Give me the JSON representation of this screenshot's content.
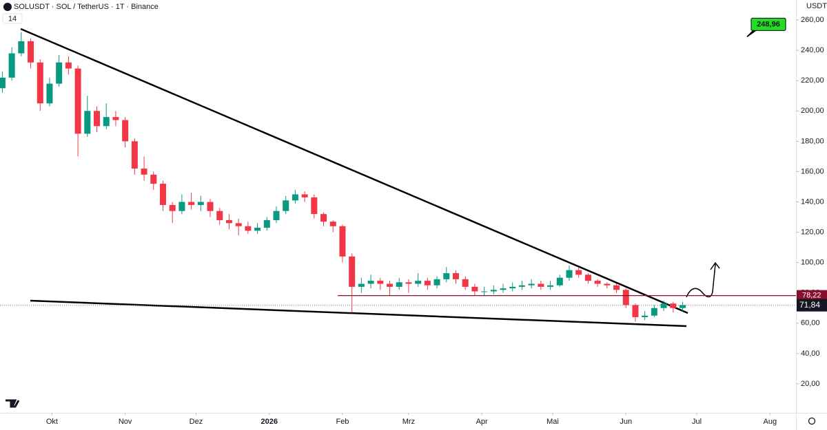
{
  "chart_data": {
    "type": "candlestick",
    "title": "SOLUSDT · SOL / TetherUS · 1T · Binance",
    "indicator_label": "14",
    "currency": "USDT",
    "up_color": "#089981",
    "down_color": "#f23645",
    "xlim": [
      0,
      337
    ],
    "xticks": [
      {
        "value": 22,
        "label": "Okt"
      },
      {
        "value": 53,
        "label": "Nov"
      },
      {
        "value": 83,
        "label": "Dez"
      },
      {
        "value": 114,
        "label": "2026"
      },
      {
        "value": 145,
        "label": "Feb"
      },
      {
        "value": 173,
        "label": "Mrz"
      },
      {
        "value": 204,
        "label": "Apr"
      },
      {
        "value": 234,
        "label": "Mai"
      },
      {
        "value": 265,
        "label": "Jun"
      },
      {
        "value": 295,
        "label": "Jul"
      },
      {
        "value": 326,
        "label": "Aug"
      }
    ],
    "ylim": [
      0.9,
      273.2
    ],
    "yticks": [
      {
        "value": 20,
        "label": "20,00"
      },
      {
        "value": 40,
        "label": "40,00"
      },
      {
        "value": 60,
        "label": "60,00"
      },
      {
        "value": 80,
        "label": "80,00"
      },
      {
        "value": 100,
        "label": "100,00"
      },
      {
        "value": 120,
        "label": "120,00"
      },
      {
        "value": 140,
        "label": "140,00"
      },
      {
        "value": 160,
        "label": "160,00"
      },
      {
        "value": 180,
        "label": "180,00"
      },
      {
        "value": 200,
        "label": "200,00"
      },
      {
        "value": 220,
        "label": "220,00"
      },
      {
        "value": 240,
        "label": "240,00"
      },
      {
        "value": 260,
        "label": "260,00"
      }
    ],
    "x": [
      1,
      5,
      9,
      13,
      17,
      21,
      25,
      29,
      33,
      37,
      41,
      45,
      49,
      53,
      57,
      61,
      65,
      69,
      73,
      77,
      81,
      85,
      89,
      93,
      97,
      101,
      105,
      109,
      113,
      117,
      121,
      125,
      129,
      133,
      137,
      141,
      145,
      149,
      153,
      157,
      161,
      165,
      169,
      173,
      177,
      181,
      185,
      189,
      193,
      197,
      201,
      205,
      209,
      213,
      217,
      221,
      225,
      229,
      233,
      237,
      241,
      245,
      249,
      253,
      257,
      261,
      265,
      269,
      273,
      277,
      281,
      285,
      289
    ],
    "open": [
      215,
      222,
      238,
      246,
      232,
      205,
      218,
      232,
      228,
      185,
      200,
      190,
      196,
      194,
      180,
      162,
      158,
      152,
      138,
      134,
      140,
      138,
      140,
      134,
      128,
      126,
      124,
      121,
      123,
      128,
      134,
      141,
      145,
      143,
      132,
      127,
      124,
      104,
      84,
      86,
      88,
      86,
      84,
      87,
      86,
      88,
      85,
      89,
      93,
      89,
      84,
      81,
      81,
      82,
      83,
      84,
      85,
      86,
      84,
      85,
      90,
      95,
      92,
      88,
      86,
      85,
      82,
      72,
      64,
      65,
      70,
      73,
      70
    ],
    "high": [
      226,
      242,
      252,
      248,
      234,
      222,
      237,
      236,
      230,
      210,
      203,
      205,
      200,
      196,
      182,
      170,
      160,
      154,
      140,
      145,
      146,
      144,
      142,
      136,
      132,
      129,
      127,
      126,
      130,
      137,
      144,
      148,
      147,
      145,
      133,
      128,
      125,
      106,
      90,
      92,
      90,
      88,
      90,
      89,
      93,
      90,
      91,
      97,
      95,
      91,
      86,
      84,
      85,
      86,
      87,
      88,
      89,
      88,
      88,
      92,
      98,
      97,
      93,
      89,
      87,
      86,
      83,
      73,
      68,
      72,
      75,
      74,
      74
    ],
    "low": [
      212,
      220,
      236,
      228,
      200,
      203,
      216,
      224,
      170,
      183,
      186,
      188,
      190,
      176,
      158,
      154,
      148,
      134,
      126,
      132,
      135,
      134,
      130,
      125,
      122,
      118,
      119,
      119,
      121,
      126,
      132,
      139,
      140,
      129,
      124,
      120,
      100,
      67,
      80,
      83,
      82,
      78,
      82,
      80,
      84,
      82,
      83,
      87,
      86,
      82,
      78,
      78,
      79,
      80,
      81,
      82,
      83,
      82,
      82,
      84,
      88,
      90,
      86,
      84,
      83,
      80,
      70,
      61,
      62,
      64,
      68,
      67,
      68
    ],
    "close": [
      222,
      238,
      246,
      232,
      205,
      218,
      232,
      228,
      185,
      200,
      190,
      196,
      194,
      180,
      162,
      158,
      152,
      138,
      134,
      140,
      138,
      140,
      134,
      128,
      126,
      124,
      121,
      123,
      128,
      134,
      141,
      145,
      143,
      132,
      127,
      124,
      104,
      84,
      86,
      88,
      86,
      84,
      87,
      86,
      88,
      85,
      89,
      93,
      89,
      84,
      81,
      81,
      82,
      83,
      84,
      85,
      86,
      84,
      85,
      90,
      95,
      92,
      88,
      86,
      85,
      82,
      72,
      64,
      65,
      70,
      73,
      70,
      72
    ],
    "level": {
      "value": 78.22,
      "label": "78,22",
      "color": "#880e2f"
    },
    "last_price": {
      "value": 71.84,
      "label": "71,84",
      "color": "#131722"
    },
    "price_note": {
      "value": 248.96,
      "label": "248,96",
      "color": "#22dd22"
    }
  }
}
